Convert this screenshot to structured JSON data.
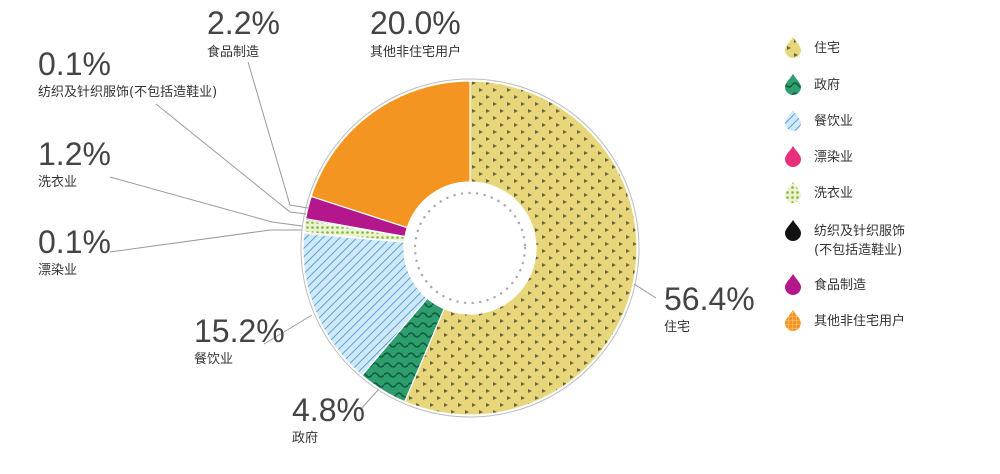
{
  "chart_data": {
    "type": "pie",
    "donut": true,
    "start": "top, clockwise",
    "slices": [
      {
        "key": "residential",
        "label": "住宅",
        "value": 56.4,
        "value_label": "56.4%",
        "color": "#e8d77a",
        "pattern": "triangles"
      },
      {
        "key": "government",
        "label": "政府",
        "value": 4.8,
        "value_label": "4.8%",
        "color": "#2e9e6e",
        "pattern": "waves"
      },
      {
        "key": "restaurant",
        "label": "餐饮业",
        "value": 15.2,
        "value_label": "15.2%",
        "color": "#9fd2f0",
        "pattern": "diagonal-lines"
      },
      {
        "key": "dyeing",
        "label": "漂染业",
        "value": 0.1,
        "value_label": "0.1%",
        "color": "#e8307a",
        "pattern": "solid"
      },
      {
        "key": "laundry",
        "label": "洗衣业",
        "value": 1.2,
        "value_label": "1.2%",
        "color": "#b5d66a",
        "pattern": "dots"
      },
      {
        "key": "textile",
        "label": "纺织及针织服饰(不包括造鞋业)",
        "value": 0.1,
        "value_label": "0.1%",
        "color": "#111111",
        "pattern": "solid"
      },
      {
        "key": "food",
        "label": "食品制造",
        "value": 2.2,
        "value_label": "2.2%",
        "color": "#b3178b",
        "pattern": "solid"
      },
      {
        "key": "other",
        "label": "其他非住宅用户",
        "value": 20.0,
        "value_label": "20.0%",
        "color": "#f39520",
        "pattern": "grid"
      }
    ],
    "legend": {
      "placement": "right",
      "items": [
        {
          "key": "residential",
          "label": "住宅"
        },
        {
          "key": "government",
          "label": "政府"
        },
        {
          "key": "restaurant",
          "label": "餐饮业"
        },
        {
          "key": "dyeing",
          "label": "漂染业"
        },
        {
          "key": "laundry",
          "label": "洗衣业"
        },
        {
          "key": "textile",
          "label": "纺织及针织服饰",
          "label2": "(不包括造鞋业)"
        },
        {
          "key": "food",
          "label": "食品制造"
        },
        {
          "key": "other",
          "label": "其他非住宅用户"
        }
      ]
    },
    "callouts": {
      "textile": "纺织及针织服饰(不包括造鞋业)"
    }
  }
}
